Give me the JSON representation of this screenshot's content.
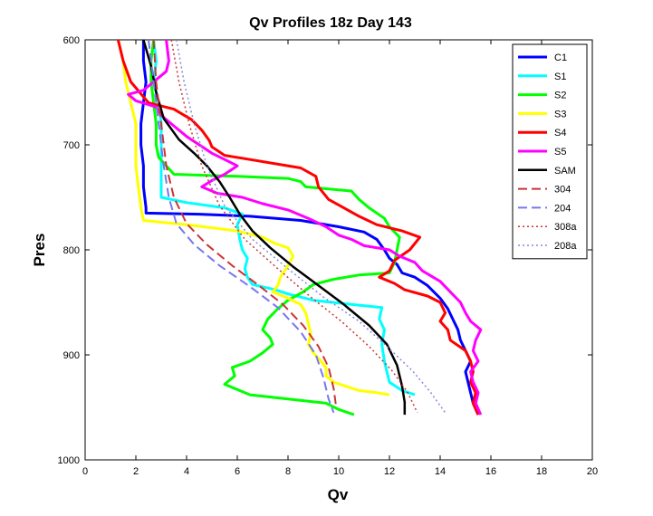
{
  "chart_data": {
    "type": "line",
    "title": "Qv Profiles 18z Day 143",
    "xlabel": "Qv",
    "ylabel": "Pres",
    "xlim": [
      0,
      20
    ],
    "ylim": [
      600,
      1000
    ],
    "y_reversed": true,
    "xticks": [
      0,
      2,
      4,
      6,
      8,
      10,
      12,
      14,
      16,
      18,
      20
    ],
    "yticks": [
      600,
      700,
      800,
      900,
      1000
    ],
    "grid": false,
    "legend_position": "top-right",
    "series": [
      {
        "name": "C1",
        "color": "#0000ff",
        "dash": "solid",
        "width": 3,
        "points": [
          [
            2.3,
            600
          ],
          [
            2.3,
            620
          ],
          [
            2.4,
            640
          ],
          [
            2.3,
            660
          ],
          [
            2.2,
            680
          ],
          [
            2.2,
            700
          ],
          [
            2.3,
            720
          ],
          [
            2.3,
            740
          ],
          [
            2.4,
            760
          ],
          [
            2.4,
            765
          ],
          [
            4.5,
            766
          ],
          [
            6.5,
            768
          ],
          [
            8.5,
            772
          ],
          [
            10.0,
            778
          ],
          [
            11.0,
            783
          ],
          [
            11.5,
            790
          ],
          [
            11.8,
            800
          ],
          [
            12.0,
            808
          ],
          [
            12.3,
            814
          ],
          [
            12.5,
            822
          ],
          [
            13.0,
            826
          ],
          [
            13.5,
            834
          ],
          [
            14.0,
            846
          ],
          [
            14.3,
            856
          ],
          [
            14.5,
            866
          ],
          [
            14.7,
            876
          ],
          [
            14.8,
            886
          ],
          [
            15.0,
            896
          ],
          [
            15.2,
            906
          ],
          [
            15.0,
            916
          ],
          [
            15.1,
            926
          ],
          [
            15.2,
            936
          ],
          [
            15.3,
            946
          ],
          [
            15.5,
            957
          ]
        ]
      },
      {
        "name": "S1",
        "color": "#00ffff",
        "dash": "solid",
        "width": 3,
        "points": [
          [
            2.7,
            600
          ],
          [
            2.8,
            620
          ],
          [
            2.7,
            640
          ],
          [
            2.9,
            660
          ],
          [
            3.0,
            680
          ],
          [
            3.0,
            700
          ],
          [
            3.0,
            720
          ],
          [
            3.0,
            740
          ],
          [
            3.0,
            750
          ],
          [
            4.0,
            755
          ],
          [
            5.5,
            760
          ],
          [
            6.2,
            766
          ],
          [
            6.0,
            776
          ],
          [
            6.1,
            790
          ],
          [
            6.2,
            800
          ],
          [
            6.4,
            808
          ],
          [
            6.3,
            818
          ],
          [
            6.4,
            826
          ],
          [
            6.6,
            833
          ],
          [
            7.5,
            838
          ],
          [
            8.0,
            842
          ],
          [
            9.0,
            848
          ],
          [
            10.5,
            852
          ],
          [
            11.7,
            855
          ],
          [
            11.6,
            866
          ],
          [
            11.8,
            876
          ],
          [
            11.7,
            890
          ],
          [
            11.8,
            906
          ],
          [
            11.9,
            916
          ],
          [
            12.0,
            926
          ],
          [
            12.5,
            934
          ],
          [
            13.0,
            938
          ]
        ]
      },
      {
        "name": "S2",
        "color": "#00ff00",
        "dash": "solid",
        "width": 3,
        "points": [
          [
            2.7,
            600
          ],
          [
            2.6,
            620
          ],
          [
            2.6,
            640
          ],
          [
            2.7,
            660
          ],
          [
            2.8,
            680
          ],
          [
            2.8,
            700
          ],
          [
            2.9,
            712
          ],
          [
            3.5,
            728
          ],
          [
            6.0,
            730
          ],
          [
            8.0,
            732
          ],
          [
            8.5,
            735
          ],
          [
            8.7,
            740
          ],
          [
            10.5,
            744
          ],
          [
            10.8,
            752
          ],
          [
            11.2,
            760
          ],
          [
            11.8,
            770
          ],
          [
            12.0,
            778
          ],
          [
            12.4,
            788
          ],
          [
            12.3,
            800
          ],
          [
            12.2,
            812
          ],
          [
            12.0,
            822
          ],
          [
            10.8,
            824
          ],
          [
            9.8,
            828
          ],
          [
            9.0,
            833
          ],
          [
            8.6,
            840
          ],
          [
            8.0,
            848
          ],
          [
            7.6,
            856
          ],
          [
            7.2,
            866
          ],
          [
            7.0,
            876
          ],
          [
            7.3,
            884
          ],
          [
            7.4,
            890
          ],
          [
            7.0,
            898
          ],
          [
            6.5,
            906
          ],
          [
            5.8,
            912
          ],
          [
            5.9,
            920
          ],
          [
            5.5,
            928
          ],
          [
            6.5,
            938
          ],
          [
            8.0,
            942
          ],
          [
            9.5,
            946
          ],
          [
            10.0,
            952
          ],
          [
            10.6,
            957
          ]
        ]
      },
      {
        "name": "S3",
        "color": "#ffff00",
        "dash": "solid",
        "width": 3,
        "points": [
          [
            1.3,
            600
          ],
          [
            1.5,
            620
          ],
          [
            1.6,
            640
          ],
          [
            1.8,
            660
          ],
          [
            2.0,
            680
          ],
          [
            2.0,
            700
          ],
          [
            2.0,
            720
          ],
          [
            2.1,
            740
          ],
          [
            2.2,
            760
          ],
          [
            2.3,
            772
          ],
          [
            4.0,
            776
          ],
          [
            6.0,
            782
          ],
          [
            7.0,
            788
          ],
          [
            7.5,
            794
          ],
          [
            8.0,
            798
          ],
          [
            8.2,
            806
          ],
          [
            8.0,
            815
          ],
          [
            7.7,
            826
          ],
          [
            7.6,
            834
          ],
          [
            7.4,
            840
          ],
          [
            8.0,
            846
          ],
          [
            8.5,
            852
          ],
          [
            8.7,
            860
          ],
          [
            8.8,
            870
          ],
          [
            8.9,
            880
          ],
          [
            8.8,
            890
          ],
          [
            9.0,
            898
          ],
          [
            9.3,
            906
          ],
          [
            9.5,
            912
          ],
          [
            9.5,
            920
          ],
          [
            9.8,
            926
          ],
          [
            10.3,
            930
          ],
          [
            10.8,
            934
          ],
          [
            11.5,
            936
          ],
          [
            12.0,
            938
          ]
        ]
      },
      {
        "name": "S4",
        "color": "#ff0000",
        "dash": "solid",
        "width": 3,
        "points": [
          [
            1.3,
            600
          ],
          [
            1.5,
            620
          ],
          [
            1.8,
            640
          ],
          [
            2.5,
            660
          ],
          [
            3.5,
            666
          ],
          [
            4.2,
            676
          ],
          [
            4.6,
            686
          ],
          [
            4.9,
            696
          ],
          [
            5.0,
            702
          ],
          [
            5.5,
            710
          ],
          [
            6.5,
            714
          ],
          [
            7.5,
            718
          ],
          [
            8.5,
            722
          ],
          [
            9.1,
            730
          ],
          [
            9.2,
            740
          ],
          [
            9.6,
            752
          ],
          [
            10.2,
            760
          ],
          [
            10.8,
            768
          ],
          [
            11.5,
            776
          ],
          [
            12.5,
            782
          ],
          [
            13.2,
            788
          ],
          [
            12.8,
            800
          ],
          [
            12.2,
            810
          ],
          [
            12.0,
            820
          ],
          [
            11.6,
            826
          ],
          [
            12.2,
            832
          ],
          [
            12.6,
            838
          ],
          [
            13.5,
            844
          ],
          [
            14.0,
            850
          ],
          [
            14.2,
            860
          ],
          [
            14.0,
            868
          ],
          [
            14.3,
            876
          ],
          [
            14.4,
            886
          ],
          [
            15.0,
            896
          ],
          [
            15.2,
            906
          ],
          [
            15.3,
            916
          ],
          [
            15.2,
            926
          ],
          [
            15.4,
            936
          ],
          [
            15.3,
            946
          ],
          [
            15.5,
            957
          ]
        ]
      },
      {
        "name": "S5",
        "color": "#ff00ff",
        "dash": "solid",
        "width": 3,
        "points": [
          [
            3.2,
            600
          ],
          [
            3.3,
            620
          ],
          [
            3.2,
            630
          ],
          [
            2.3,
            648
          ],
          [
            1.7,
            652
          ],
          [
            2.0,
            658
          ],
          [
            2.8,
            664
          ],
          [
            3.0,
            672
          ],
          [
            3.5,
            682
          ],
          [
            4.0,
            692
          ],
          [
            4.5,
            700
          ],
          [
            5.0,
            708
          ],
          [
            5.5,
            714
          ],
          [
            6.0,
            720
          ],
          [
            5.5,
            728
          ],
          [
            5.0,
            734
          ],
          [
            4.6,
            740
          ],
          [
            5.2,
            746
          ],
          [
            6.2,
            750
          ],
          [
            7.0,
            756
          ],
          [
            8.0,
            762
          ],
          [
            8.8,
            770
          ],
          [
            9.5,
            778
          ],
          [
            10.0,
            786
          ],
          [
            10.5,
            790
          ],
          [
            11.0,
            796
          ],
          [
            12.0,
            800
          ],
          [
            12.4,
            806
          ],
          [
            13.0,
            812
          ],
          [
            13.3,
            820
          ],
          [
            14.0,
            830
          ],
          [
            14.4,
            840
          ],
          [
            14.8,
            850
          ],
          [
            15.0,
            860
          ],
          [
            15.2,
            868
          ],
          [
            15.6,
            876
          ],
          [
            15.4,
            886
          ],
          [
            15.3,
            896
          ],
          [
            15.5,
            906
          ],
          [
            15.2,
            916
          ],
          [
            15.3,
            926
          ],
          [
            15.5,
            936
          ],
          [
            15.4,
            946
          ],
          [
            15.6,
            957
          ]
        ]
      },
      {
        "name": "SAM",
        "color": "#000000",
        "dash": "solid",
        "width": 2.5,
        "points": [
          [
            2.3,
            600
          ],
          [
            2.6,
            625
          ],
          [
            2.8,
            650
          ],
          [
            3.1,
            675
          ],
          [
            3.7,
            695
          ],
          [
            4.3,
            708
          ],
          [
            4.8,
            720
          ],
          [
            5.3,
            735
          ],
          [
            5.7,
            750
          ],
          [
            6.1,
            766
          ],
          [
            6.6,
            782
          ],
          [
            7.3,
            798
          ],
          [
            8.2,
            816
          ],
          [
            9.2,
            834
          ],
          [
            10.2,
            852
          ],
          [
            11.2,
            872
          ],
          [
            11.9,
            890
          ],
          [
            12.3,
            910
          ],
          [
            12.5,
            930
          ],
          [
            12.6,
            945
          ],
          [
            12.6,
            957
          ]
        ]
      },
      {
        "name": "304",
        "color": "#cc3333",
        "dash": "10,5",
        "width": 2,
        "points": [
          [
            2.7,
            600
          ],
          [
            2.8,
            640
          ],
          [
            3.0,
            680
          ],
          [
            3.2,
            720
          ],
          [
            3.5,
            750
          ],
          [
            4.0,
            775
          ],
          [
            4.8,
            795
          ],
          [
            5.8,
            815
          ],
          [
            6.8,
            833
          ],
          [
            7.8,
            852
          ],
          [
            8.6,
            872
          ],
          [
            9.2,
            892
          ],
          [
            9.6,
            912
          ],
          [
            9.8,
            932
          ],
          [
            9.9,
            950
          ]
        ]
      },
      {
        "name": "204",
        "color": "#7777ee",
        "dash": "10,5",
        "width": 2,
        "points": [
          [
            2.5,
            600
          ],
          [
            2.7,
            640
          ],
          [
            2.9,
            680
          ],
          [
            3.1,
            720
          ],
          [
            3.3,
            750
          ],
          [
            3.6,
            775
          ],
          [
            4.3,
            795
          ],
          [
            5.3,
            815
          ],
          [
            6.5,
            835
          ],
          [
            7.6,
            855
          ],
          [
            8.5,
            878
          ],
          [
            9.1,
            900
          ],
          [
            9.4,
            922
          ],
          [
            9.6,
            942
          ],
          [
            9.8,
            955
          ]
        ]
      },
      {
        "name": "308a",
        "color": "#cc3333",
        "dash": "2,3",
        "width": 1.5,
        "points": [
          [
            3.4,
            600
          ],
          [
            3.7,
            640
          ],
          [
            4.1,
            680
          ],
          [
            4.6,
            720
          ],
          [
            5.3,
            758
          ],
          [
            6.3,
            790
          ],
          [
            7.6,
            818
          ],
          [
            8.9,
            845
          ],
          [
            10.1,
            868
          ],
          [
            11.2,
            892
          ],
          [
            12.1,
            915
          ],
          [
            12.7,
            935
          ],
          [
            13.1,
            955
          ]
        ]
      },
      {
        "name": "208a",
        "color": "#8888dd",
        "dash": "2,3",
        "width": 1.5,
        "points": [
          [
            3.6,
            600
          ],
          [
            3.9,
            640
          ],
          [
            4.3,
            680
          ],
          [
            4.8,
            720
          ],
          [
            5.5,
            758
          ],
          [
            6.6,
            790
          ],
          [
            8.0,
            818
          ],
          [
            9.4,
            845
          ],
          [
            10.8,
            868
          ],
          [
            11.9,
            892
          ],
          [
            12.9,
            915
          ],
          [
            13.6,
            935
          ],
          [
            14.2,
            955
          ]
        ]
      }
    ]
  }
}
